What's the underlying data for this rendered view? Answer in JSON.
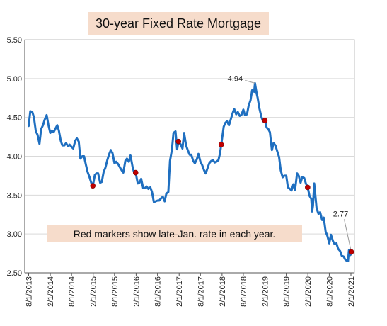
{
  "chart_data": {
    "type": "line",
    "title": "30-year Fixed Rate Mortgage",
    "xlabel": "",
    "ylabel": "",
    "ylim": [
      2.5,
      5.5
    ],
    "yticks": [
      "5.50",
      "5.00",
      "4.50",
      "4.00",
      "3.50",
      "3.00",
      "2.50"
    ],
    "ytick_values": [
      5.5,
      5.0,
      4.5,
      4.0,
      3.5,
      3.0,
      2.5
    ],
    "xticks": [
      "8/1/2013",
      "2/1/2014",
      "8/1/2014",
      "2/1/2015",
      "8/1/2015",
      "2/1/2016",
      "8/1/2016",
      "2/1/2017",
      "8/1/2017",
      "2/1/2018",
      "8/1/2018",
      "2/1/2019",
      "8/1/2019",
      "2/1/2020",
      "8/1/2020",
      "2/1/2021"
    ],
    "grid": "horizontal",
    "series": [
      {
        "color": "#1f6fc0",
        "points": [
          [
            "2013-08-01",
            4.39
          ],
          [
            "2013-08-15",
            4.58
          ],
          [
            "2013-09-01",
            4.57
          ],
          [
            "2013-09-15",
            4.5
          ],
          [
            "2013-10-01",
            4.32
          ],
          [
            "2013-10-15",
            4.28
          ],
          [
            "2013-11-01",
            4.16
          ],
          [
            "2013-11-15",
            4.35
          ],
          [
            "2013-12-01",
            4.4
          ],
          [
            "2013-12-15",
            4.47
          ],
          [
            "2014-01-01",
            4.53
          ],
          [
            "2014-01-15",
            4.41
          ],
          [
            "2014-02-01",
            4.3
          ],
          [
            "2014-02-15",
            4.33
          ],
          [
            "2014-03-01",
            4.31
          ],
          [
            "2014-03-15",
            4.35
          ],
          [
            "2014-04-01",
            4.4
          ],
          [
            "2014-04-15",
            4.33
          ],
          [
            "2014-05-01",
            4.2
          ],
          [
            "2014-05-15",
            4.14
          ],
          [
            "2014-06-01",
            4.14
          ],
          [
            "2014-06-15",
            4.17
          ],
          [
            "2014-07-01",
            4.13
          ],
          [
            "2014-07-15",
            4.15
          ],
          [
            "2014-08-01",
            4.12
          ],
          [
            "2014-08-15",
            4.1
          ],
          [
            "2014-09-01",
            4.2
          ],
          [
            "2014-09-15",
            4.23
          ],
          [
            "2014-10-01",
            4.19
          ],
          [
            "2014-10-15",
            3.97
          ],
          [
            "2014-11-01",
            4.0
          ],
          [
            "2014-11-15",
            4.0
          ],
          [
            "2014-12-01",
            3.89
          ],
          [
            "2014-12-15",
            3.8
          ],
          [
            "2015-01-01",
            3.73
          ],
          [
            "2015-01-15",
            3.66
          ],
          [
            "2015-01-29",
            3.62
          ],
          [
            "2015-02-15",
            3.76
          ],
          [
            "2015-03-01",
            3.78
          ],
          [
            "2015-03-15",
            3.78
          ],
          [
            "2015-04-01",
            3.66
          ],
          [
            "2015-04-15",
            3.67
          ],
          [
            "2015-05-01",
            3.8
          ],
          [
            "2015-05-15",
            3.85
          ],
          [
            "2015-06-01",
            3.95
          ],
          [
            "2015-06-15",
            4.02
          ],
          [
            "2015-07-01",
            4.08
          ],
          [
            "2015-07-15",
            4.04
          ],
          [
            "2015-08-01",
            3.91
          ],
          [
            "2015-08-15",
            3.93
          ],
          [
            "2015-09-01",
            3.9
          ],
          [
            "2015-09-15",
            3.86
          ],
          [
            "2015-10-01",
            3.82
          ],
          [
            "2015-10-15",
            3.79
          ],
          [
            "2015-11-01",
            3.94
          ],
          [
            "2015-11-15",
            3.97
          ],
          [
            "2015-12-01",
            3.93
          ],
          [
            "2015-12-15",
            4.01
          ],
          [
            "2016-01-01",
            3.87
          ],
          [
            "2016-01-15",
            3.79
          ],
          [
            "2016-01-28",
            3.79
          ],
          [
            "2016-02-15",
            3.65
          ],
          [
            "2016-03-01",
            3.66
          ],
          [
            "2016-03-15",
            3.71
          ],
          [
            "2016-04-01",
            3.59
          ],
          [
            "2016-04-15",
            3.59
          ],
          [
            "2016-05-01",
            3.61
          ],
          [
            "2016-05-15",
            3.58
          ],
          [
            "2016-06-01",
            3.6
          ],
          [
            "2016-06-15",
            3.54
          ],
          [
            "2016-07-01",
            3.41
          ],
          [
            "2016-07-15",
            3.42
          ],
          [
            "2016-08-01",
            3.43
          ],
          [
            "2016-08-15",
            3.43
          ],
          [
            "2016-09-01",
            3.46
          ],
          [
            "2016-09-15",
            3.48
          ],
          [
            "2016-10-01",
            3.42
          ],
          [
            "2016-10-15",
            3.52
          ],
          [
            "2016-11-01",
            3.54
          ],
          [
            "2016-11-15",
            3.94
          ],
          [
            "2016-12-01",
            4.08
          ],
          [
            "2016-12-15",
            4.3
          ],
          [
            "2017-01-01",
            4.32
          ],
          [
            "2017-01-15",
            4.09
          ],
          [
            "2017-01-26",
            4.19
          ],
          [
            "2017-02-15",
            4.15
          ],
          [
            "2017-03-01",
            4.1
          ],
          [
            "2017-03-15",
            4.3
          ],
          [
            "2017-04-01",
            4.14
          ],
          [
            "2017-04-15",
            4.08
          ],
          [
            "2017-05-01",
            4.02
          ],
          [
            "2017-05-15",
            4.02
          ],
          [
            "2017-06-01",
            3.94
          ],
          [
            "2017-06-15",
            3.91
          ],
          [
            "2017-07-01",
            3.96
          ],
          [
            "2017-07-15",
            4.03
          ],
          [
            "2017-08-01",
            3.93
          ],
          [
            "2017-08-15",
            3.89
          ],
          [
            "2017-09-01",
            3.82
          ],
          [
            "2017-09-15",
            3.78
          ],
          [
            "2017-10-01",
            3.85
          ],
          [
            "2017-10-15",
            3.91
          ],
          [
            "2017-11-01",
            3.94
          ],
          [
            "2017-11-15",
            3.95
          ],
          [
            "2017-12-01",
            3.92
          ],
          [
            "2017-12-15",
            3.93
          ],
          [
            "2018-01-01",
            3.95
          ],
          [
            "2018-01-15",
            4.04
          ],
          [
            "2018-01-25",
            4.15
          ],
          [
            "2018-02-15",
            4.38
          ],
          [
            "2018-03-01",
            4.43
          ],
          [
            "2018-03-15",
            4.45
          ],
          [
            "2018-04-01",
            4.4
          ],
          [
            "2018-04-15",
            4.47
          ],
          [
            "2018-05-01",
            4.55
          ],
          [
            "2018-05-15",
            4.61
          ],
          [
            "2018-06-01",
            4.54
          ],
          [
            "2018-06-15",
            4.57
          ],
          [
            "2018-07-01",
            4.52
          ],
          [
            "2018-07-15",
            4.53
          ],
          [
            "2018-08-01",
            4.6
          ],
          [
            "2018-08-15",
            4.53
          ],
          [
            "2018-09-01",
            4.54
          ],
          [
            "2018-09-15",
            4.65
          ],
          [
            "2018-10-01",
            4.72
          ],
          [
            "2018-10-15",
            4.85
          ],
          [
            "2018-11-01",
            4.83
          ],
          [
            "2018-11-08",
            4.94
          ],
          [
            "2018-11-22",
            4.81
          ],
          [
            "2018-12-01",
            4.75
          ],
          [
            "2018-12-15",
            4.62
          ],
          [
            "2019-01-01",
            4.51
          ],
          [
            "2019-01-15",
            4.45
          ],
          [
            "2019-01-31",
            4.46
          ],
          [
            "2019-02-15",
            4.37
          ],
          [
            "2019-03-01",
            4.35
          ],
          [
            "2019-03-15",
            4.31
          ],
          [
            "2019-04-01",
            4.08
          ],
          [
            "2019-04-15",
            4.17
          ],
          [
            "2019-05-01",
            4.14
          ],
          [
            "2019-05-15",
            4.07
          ],
          [
            "2019-06-01",
            3.99
          ],
          [
            "2019-06-15",
            3.82
          ],
          [
            "2019-07-01",
            3.73
          ],
          [
            "2019-07-15",
            3.75
          ],
          [
            "2019-08-01",
            3.75
          ],
          [
            "2019-08-15",
            3.6
          ],
          [
            "2019-09-01",
            3.58
          ],
          [
            "2019-09-15",
            3.56
          ],
          [
            "2019-10-01",
            3.64
          ],
          [
            "2019-10-15",
            3.57
          ],
          [
            "2019-11-01",
            3.78
          ],
          [
            "2019-11-15",
            3.75
          ],
          [
            "2019-12-01",
            3.66
          ],
          [
            "2019-12-15",
            3.73
          ],
          [
            "2020-01-01",
            3.72
          ],
          [
            "2020-01-15",
            3.65
          ],
          [
            "2020-01-30",
            3.6
          ],
          [
            "2020-02-15",
            3.49
          ],
          [
            "2020-03-01",
            3.45
          ],
          [
            "2020-03-08",
            3.29
          ],
          [
            "2020-03-15",
            3.36
          ],
          [
            "2020-03-26",
            3.65
          ],
          [
            "2020-04-15",
            3.33
          ],
          [
            "2020-05-01",
            3.26
          ],
          [
            "2020-05-15",
            3.28
          ],
          [
            "2020-06-01",
            3.18
          ],
          [
            "2020-06-15",
            3.21
          ],
          [
            "2020-07-01",
            3.03
          ],
          [
            "2020-07-15",
            2.98
          ],
          [
            "2020-08-01",
            2.88
          ],
          [
            "2020-08-15",
            2.99
          ],
          [
            "2020-09-01",
            2.91
          ],
          [
            "2020-09-15",
            2.87
          ],
          [
            "2020-10-01",
            2.88
          ],
          [
            "2020-10-15",
            2.81
          ],
          [
            "2020-11-01",
            2.78
          ],
          [
            "2020-11-15",
            2.72
          ],
          [
            "2020-12-01",
            2.71
          ],
          [
            "2020-12-15",
            2.67
          ],
          [
            "2021-01-01",
            2.65
          ],
          [
            "2021-01-07",
            2.65
          ],
          [
            "2021-01-15",
            2.79
          ],
          [
            "2021-01-28",
            2.73
          ],
          [
            "2021-02-04",
            2.77
          ]
        ]
      }
    ],
    "markers": {
      "color": "#c00000",
      "points": [
        [
          "2015-01-29",
          3.62
        ],
        [
          "2016-01-28",
          3.79
        ],
        [
          "2017-01-26",
          4.19
        ],
        [
          "2018-01-25",
          4.15
        ],
        [
          "2019-01-31",
          4.46
        ],
        [
          "2020-01-30",
          3.6
        ],
        [
          "2021-02-04",
          2.77
        ]
      ]
    },
    "annotations": [
      {
        "text": "4.94",
        "x": "2018-11-08",
        "y": 4.94
      },
      {
        "text": "2.77",
        "x": "2021-02-04",
        "y": 2.77
      }
    ],
    "note": "Red markers show late-Jan. rate in each year."
  }
}
